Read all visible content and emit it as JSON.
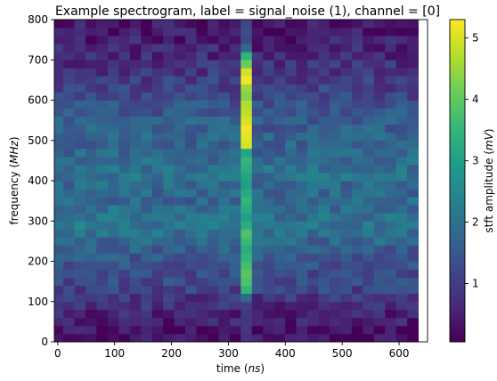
{
  "chart_data": {
    "type": "heatmap",
    "title": "Example spectrogram, label = signal_noise (1), channel = [0]",
    "xlabel": {
      "prefix": "time (",
      "unit": "ns",
      "suffix": ")"
    },
    "ylabel": {
      "prefix": "frequency (",
      "unit": "MHz",
      "suffix": ")"
    },
    "colorbar_label": {
      "prefix": "stft amplitude (",
      "unit": "mV",
      "suffix": ")"
    },
    "colormap": "viridis",
    "x_ticks": [
      "0",
      "100",
      "200",
      "300",
      "400",
      "500",
      "600"
    ],
    "x_tick_values": [
      0,
      100,
      200,
      300,
      400,
      500,
      600
    ],
    "y_ticks": [
      "0",
      "100",
      "200",
      "300",
      "400",
      "500",
      "600",
      "700",
      "800"
    ],
    "y_tick_values": [
      0,
      100,
      200,
      300,
      400,
      500,
      600,
      700,
      800
    ],
    "colorbar_ticks": [
      "1",
      "2",
      "3",
      "4",
      "5"
    ],
    "colorbar_tick_values": [
      1,
      2,
      3,
      4,
      5
    ],
    "xlim": [
      -6,
      650
    ],
    "ylim": [
      0,
      800
    ],
    "color_range": [
      0.05,
      5.3
    ],
    "time_bins": {
      "start": 0,
      "step": 19.5,
      "count": 33
    },
    "freq_bins": {
      "start": 0,
      "step": 20,
      "count": 40
    },
    "signal_column_index": 17,
    "signal_column_values": [
      0.8,
      0.9,
      0.9,
      0.9,
      1.0,
      1.8,
      3.5,
      3.8,
      3.9,
      3.7,
      3.5,
      3.3,
      3.6,
      3.8,
      3.3,
      3.0,
      3.3,
      3.5,
      3.2,
      3.0,
      3.1,
      3.3,
      3.5,
      3.1,
      5.0,
      5.1,
      5.2,
      5.0,
      4.8,
      4.7,
      4.3,
      4.5,
      5.2,
      5.0,
      4.1,
      3.5,
      1.8,
      1.2,
      1.3,
      1.2
    ],
    "background_profile_by_freq_bin": [
      0.2,
      0.3,
      0.5,
      0.6,
      0.7,
      0.9,
      1.1,
      1.2,
      1.3,
      1.4,
      1.5,
      1.6,
      1.8,
      2.0,
      2.1,
      2.0,
      1.9,
      1.8,
      1.8,
      1.9,
      2.0,
      2.0,
      1.9,
      1.8,
      1.7,
      1.7,
      1.6,
      1.6,
      1.5,
      1.4,
      1.2,
      1.1,
      1.0,
      0.9,
      0.8,
      0.7,
      0.6,
      0.5,
      0.4,
      0.35
    ],
    "noise_amplitude": 0.45
  }
}
